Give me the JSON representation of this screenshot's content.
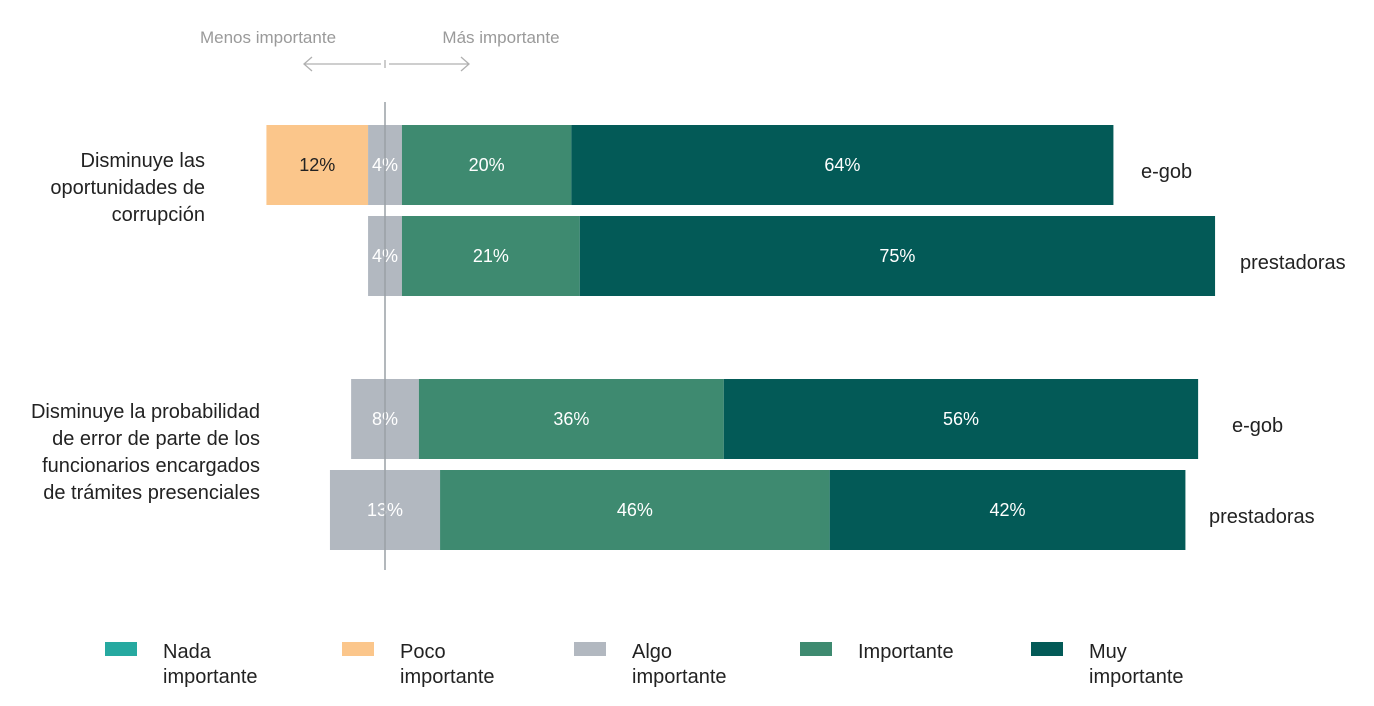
{
  "chart_data": {
    "type": "bar",
    "orientation": "horizontal",
    "stacked": "diverging",
    "hint_left": "Menos importante",
    "hint_right": "Más importante",
    "categories_scale": [
      "Nada importante",
      "Poco importante",
      "Algo importante",
      "Importante",
      "Muy importante"
    ],
    "colors": {
      "Nada importante": "#26a9a0",
      "Poco importante": "#fbc68b",
      "Algo importante": "#b2b8c0",
      "Importante": "#3e8a70",
      "Muy importante": "#035a57"
    },
    "label_colors": {
      "Poco importante": "#222222",
      "Algo importante": "#ffffff",
      "Importante": "#ffffff",
      "Muy importante": "#ffffff"
    },
    "groups": [
      {
        "label_lines": [
          "Disminuye las",
          "oportunidades de",
          "corrupción"
        ],
        "bars": [
          {
            "name": "e-gob",
            "segments": [
              {
                "category": "Poco importante",
                "value": 12,
                "label": "12%"
              },
              {
                "category": "Algo importante",
                "value": 4,
                "label": "4%"
              },
              {
                "category": "Importante",
                "value": 20,
                "label": "20%"
              },
              {
                "category": "Muy importante",
                "value": 64,
                "label": "64%"
              }
            ]
          },
          {
            "name": "prestadoras",
            "segments": [
              {
                "category": "Algo importante",
                "value": 4,
                "label": "4%"
              },
              {
                "category": "Importante",
                "value": 21,
                "label": "21%"
              },
              {
                "category": "Muy importante",
                "value": 75,
                "label": "75%"
              }
            ]
          }
        ]
      },
      {
        "label_lines": [
          "Disminuye la probabilidad",
          "de error de parte de los",
          "funcionarios encargados",
          "de trámites presenciales"
        ],
        "bars": [
          {
            "name": "e-gob",
            "segments": [
              {
                "category": "Algo importante",
                "value": 8,
                "label": "8%"
              },
              {
                "category": "Importante",
                "value": 36,
                "label": "36%"
              },
              {
                "category": "Muy importante",
                "value": 56,
                "label": "56%"
              }
            ]
          },
          {
            "name": "prestadoras",
            "segments": [
              {
                "category": "Algo importante",
                "value": 13,
                "label": "13%"
              },
              {
                "category": "Importante",
                "value": 46,
                "label": "46%"
              },
              {
                "category": "Muy importante",
                "value": 42,
                "label": "42%"
              }
            ]
          }
        ]
      }
    ],
    "legend": [
      {
        "category": "Nada importante",
        "lines": [
          "Nada",
          "importante"
        ]
      },
      {
        "category": "Poco importante",
        "lines": [
          "Poco",
          "importante"
        ]
      },
      {
        "category": "Algo importante",
        "lines": [
          "Algo",
          "importante"
        ]
      },
      {
        "category": "Importante",
        "lines": [
          "Importante"
        ]
      },
      {
        "category": "Muy importante",
        "lines": [
          "Muy",
          "importante"
        ]
      }
    ]
  }
}
